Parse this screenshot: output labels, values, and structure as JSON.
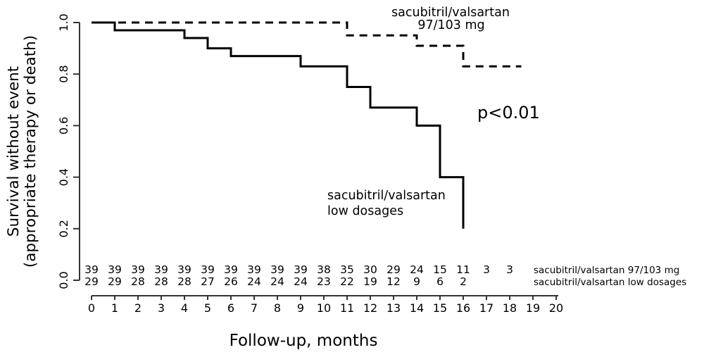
{
  "colors": {
    "curve": "#000000",
    "axis": "#333333",
    "text": "#000000",
    "background": "#ffffff"
  },
  "chart_data": {
    "type": "line",
    "subtype": "kaplan-meier-step",
    "title": "",
    "xlabel": "Follow-up, months",
    "ylabel_line1": "Survival without event",
    "ylabel_line2": "(appropriate therapy or death)",
    "annotation": "p<0.01",
    "xlim": [
      0,
      20
    ],
    "ylim": [
      0.0,
      1.0
    ],
    "grid": false,
    "x_tick_labels": [
      "0",
      "1",
      "2",
      "3",
      "4",
      "5",
      "6",
      "7",
      "8",
      "9",
      "10",
      "11",
      "12",
      "13",
      "14",
      "15",
      "16",
      "17",
      "18",
      "19",
      "20"
    ],
    "y_ticks": [
      0.0,
      0.2,
      0.4,
      0.6,
      0.8,
      1.0
    ],
    "y_tick_labels": [
      "0.0",
      "0.2",
      "0.4",
      "0.6",
      "0.8",
      "1.0"
    ],
    "series": [
      {
        "name": "sacubitril/valsartan 97/103 mg",
        "line_style": "dashed",
        "label_line1": "sacubitril/valsartan",
        "label_line2": "97/103 mg",
        "steps": [
          [
            0,
            1.0
          ],
          [
            11,
            0.95
          ],
          [
            14,
            0.91
          ],
          [
            16,
            0.83
          ]
        ],
        "end_x": 18.5
      },
      {
        "name": "sacubitril/valsartan low dosages",
        "line_style": "solid",
        "label_line1": "sacubitril/valsartan",
        "label_line2": "low dosages",
        "steps": [
          [
            0,
            1.0
          ],
          [
            1,
            0.97
          ],
          [
            4,
            0.94
          ],
          [
            5,
            0.9
          ],
          [
            6,
            0.87
          ],
          [
            9,
            0.83
          ],
          [
            11,
            0.75
          ],
          [
            12,
            0.67
          ],
          [
            14,
            0.6
          ],
          [
            15,
            0.4
          ],
          [
            16,
            0.2
          ]
        ],
        "end_x": 16
      }
    ],
    "risk_table": {
      "rows": [
        {
          "label": "sacubitril/valsartan 97/103 mg",
          "counts": [
            39,
            39,
            39,
            39,
            39,
            39,
            39,
            39,
            39,
            39,
            38,
            35,
            30,
            29,
            24,
            15,
            11,
            3,
            3
          ]
        },
        {
          "label": "sacubitril/valsartan low dosages",
          "counts": [
            29,
            29,
            28,
            28,
            28,
            27,
            26,
            24,
            24,
            24,
            23,
            22,
            19,
            12,
            9,
            6,
            2
          ]
        }
      ]
    }
  }
}
